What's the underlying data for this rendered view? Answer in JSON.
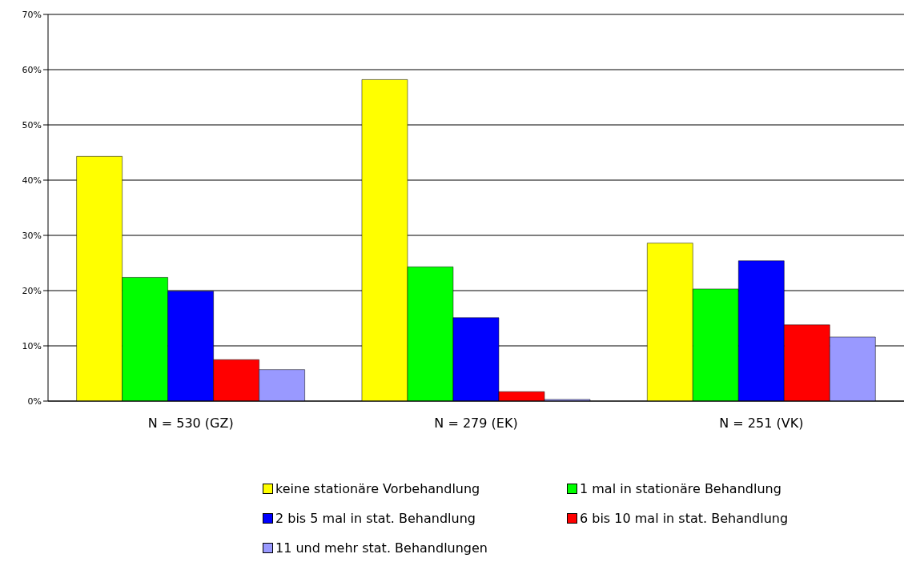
{
  "chart_data": {
    "type": "bar",
    "categories": [
      "N = 530 (GZ)",
      "N = 279  (EK)",
      "N = 251 (VK)"
    ],
    "series": [
      {
        "name": "keine stationäre Vorbehandlung",
        "color": "#ffff00",
        "values": [
          44.3,
          58.2,
          28.6
        ]
      },
      {
        "name": "1 mal in stationäre Behandlung",
        "color": "#00ff00",
        "values": [
          22.4,
          24.3,
          20.3
        ]
      },
      {
        "name": "2 bis 5 mal in stat. Behandlung",
        "color": "#0000ff",
        "values": [
          19.9,
          15.1,
          25.4
        ]
      },
      {
        "name": "6 bis 10 mal in stat. Behandlung",
        "color": "#ff0000",
        "values": [
          7.5,
          1.7,
          13.8
        ]
      },
      {
        "name": "11 und mehr stat. Behandlungen",
        "color": "#9999ff",
        "values": [
          5.7,
          0.3,
          11.6
        ]
      }
    ],
    "ylim": [
      0,
      70
    ],
    "yticks": [
      {
        "value": 0,
        "label": "0%"
      },
      {
        "value": 10,
        "label": "10%"
      },
      {
        "value": 20,
        "label": "20%"
      },
      {
        "value": 30,
        "label": "30%"
      },
      {
        "value": 40,
        "label": "40%"
      },
      {
        "value": 50,
        "label": "50%"
      },
      {
        "value": 60,
        "label": "60%"
      },
      {
        "value": 70,
        "label": "70%"
      }
    ],
    "grid": "y",
    "legend": "bottom"
  }
}
